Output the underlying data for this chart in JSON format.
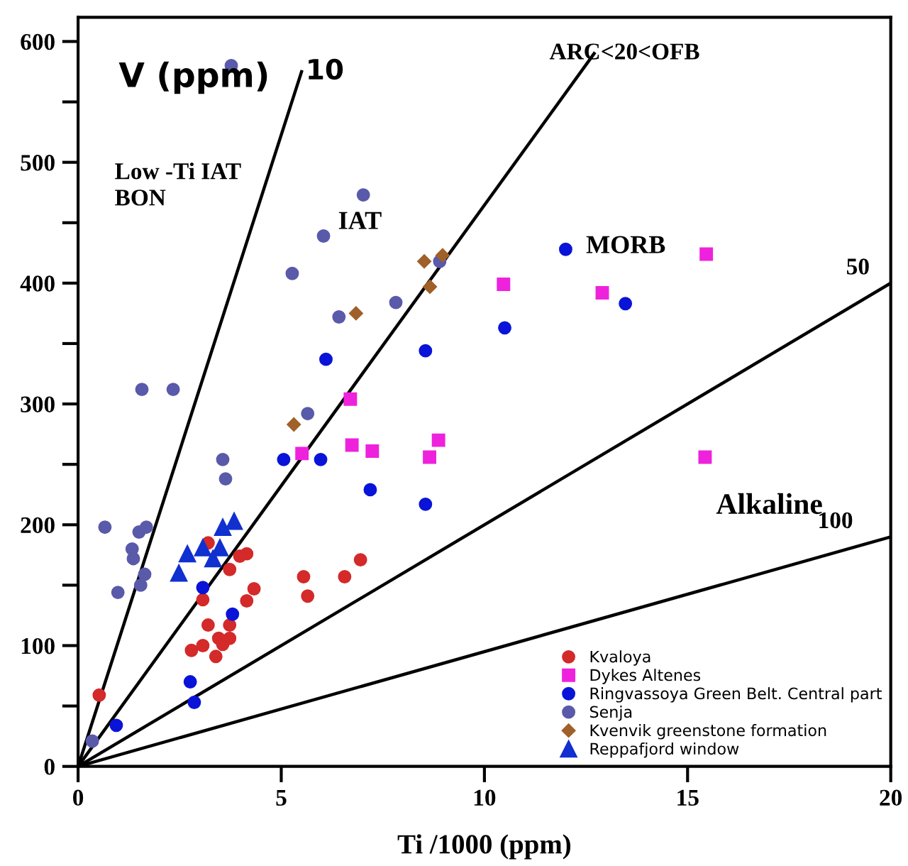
{
  "chart_data": {
    "type": "scatter",
    "xlabel": "Ti /1000 (ppm)",
    "xlim": [
      0,
      20
    ],
    "xticks": [
      0,
      5,
      10,
      15,
      20
    ],
    "ylim": [
      0,
      620
    ],
    "yticks": [
      0,
      {
        "value": 50,
        "label": null
      },
      100,
      {
        "value": 150,
        "label": null
      },
      200,
      {
        "value": 250,
        "label": null
      },
      300,
      {
        "value": 350,
        "label": null
      },
      400,
      {
        "value": 450,
        "label": null
      },
      500,
      {
        "value": 550,
        "label": null
      },
      600
    ],
    "grid": false,
    "legend": "bottom right",
    "annotations": [
      "V (ppm)",
      "10",
      "ARC<20<OFB",
      "50",
      "100",
      "Low -Ti IAT\nBON",
      "IAT",
      "MORB",
      "Alkaline"
    ],
    "series": [
      {
        "type": "line",
        "color": "#000000",
        "marker": "none",
        "x": [
          0,
          5.5
        ],
        "values": [
          0,
          575
        ]
      },
      {
        "type": "line",
        "color": "#000000",
        "marker": "none",
        "x": [
          0,
          12.7
        ],
        "values": [
          0,
          590
        ]
      },
      {
        "type": "line",
        "color": "#000000",
        "marker": "none",
        "x": [
          0,
          20
        ],
        "values": [
          0,
          400
        ]
      },
      {
        "type": "line",
        "color": "#000000",
        "marker": "none",
        "x": [
          0,
          20
        ],
        "values": [
          0,
          190
        ]
      },
      {
        "name": "Kvaloya",
        "color": "#d42a2a",
        "marker": "circle",
        "x": [
          0.52,
          3.2,
          4.15,
          3.98,
          3.73,
          4.33,
          4.15,
          3.07,
          5.55,
          5.65,
          6.56,
          6.95,
          3.2,
          3.73,
          3.46,
          3.56,
          3.73,
          2.79,
          3.07,
          3.39
        ],
        "values": [
          59,
          185,
          176,
          174,
          163,
          147,
          137,
          138,
          157,
          141,
          157,
          171,
          117,
          117,
          106,
          101,
          106,
          96,
          100,
          91
        ]
      },
      {
        "name": "Dykes Altenes",
        "color": "#ee22dd",
        "marker": "square",
        "x": [
          5.51,
          6.7,
          6.74,
          7.24,
          8.65,
          8.87,
          10.47,
          12.9,
          15.46,
          15.43
        ],
        "values": [
          259,
          304,
          266,
          261,
          256,
          270,
          399,
          392,
          424,
          256
        ]
      },
      {
        "name": "Ringvassoya Green Belt. Central part",
        "color": "#0a14d8",
        "marker": "circle",
        "x": [
          0.94,
          2.76,
          2.86,
          3.07,
          3.8,
          5.06,
          5.97,
          7.19,
          6.1,
          12.0,
          13.47,
          10.5,
          8.55,
          8.55
        ],
        "values": [
          34,
          70,
          53,
          148,
          126,
          254,
          254,
          229,
          337,
          428,
          383,
          363,
          344,
          217
        ]
      },
      {
        "name": "Senja",
        "color": "#5a5aaa",
        "marker": "circle",
        "x": [
          3.77,
          7.02,
          6.04,
          5.27,
          6.42,
          1.57,
          2.34,
          8.9,
          7.82,
          5.65,
          3.56,
          3.63,
          0.66,
          1.5,
          1.68,
          1.33,
          1.36,
          1.64,
          1.54,
          0.98,
          0.35
        ],
        "values": [
          580,
          473,
          439,
          408,
          372,
          312,
          312,
          418,
          384,
          292,
          254,
          238,
          198,
          194,
          198,
          180,
          172,
          159,
          150,
          144,
          21
        ]
      },
      {
        "name": "Kvenvik greenstone formation",
        "color": "#a0602a",
        "marker": "diamond",
        "x": [
          8.52,
          8.97,
          8.66,
          6.84,
          5.31
        ],
        "values": [
          418,
          423,
          397,
          375,
          283
        ]
      },
      {
        "name": "Reppafjord window",
        "color": "#1030d0",
        "marker": "triangle",
        "x": [
          2.69,
          2.48,
          3.07,
          3.49,
          3.32,
          3.56,
          3.84
        ],
        "values": [
          176,
          160,
          181,
          181,
          172,
          198,
          203
        ]
      }
    ]
  }
}
